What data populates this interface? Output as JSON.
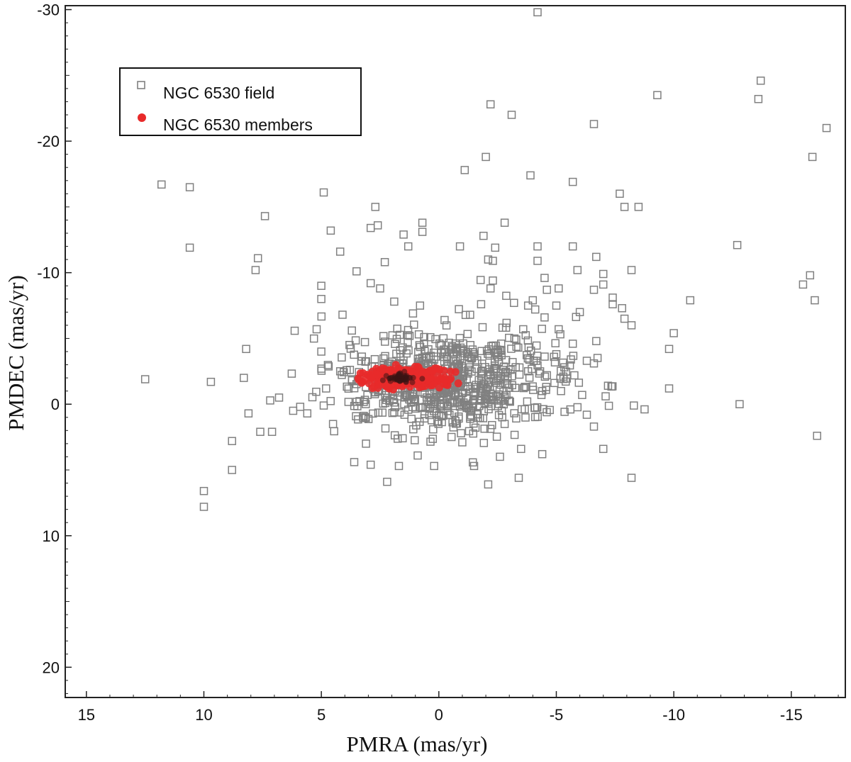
{
  "chart_data": {
    "type": "scatter",
    "xlabel": "PMRA (mas/yr)",
    "ylabel": "PMDEC (mas/yr)",
    "x_axis": {
      "min": -17.3,
      "max": 15.9,
      "reversed": true,
      "ticks": [
        15,
        10,
        5,
        0,
        -5,
        -10,
        -15
      ]
    },
    "y_axis": {
      "min": -30.3,
      "max": 22.3,
      "reversed": true,
      "ticks": [
        -30,
        -20,
        -10,
        0,
        10,
        20
      ]
    },
    "grid": false,
    "legend": {
      "placement": "top-left",
      "entries": [
        "NGC 6530 field",
        "NGC 6530 members"
      ]
    },
    "colors": {
      "field": "#808080",
      "members": "#e82a2a",
      "members_core": "#3a1414"
    },
    "series": [
      {
        "name": "NGC 6530 field",
        "marker": "open-square",
        "dense_core": {
          "center": [
            -0.4,
            -1.8
          ],
          "spread": [
            2.4,
            1.9
          ],
          "count": 700
        },
        "points": [
          [
            -4.2,
            -29.8
          ],
          [
            -13.7,
            -24.6
          ],
          [
            -13.6,
            -23.2
          ],
          [
            -9.3,
            -23.5
          ],
          [
            -2.2,
            -22.8
          ],
          [
            -3.1,
            -22.0
          ],
          [
            -16.5,
            -21.0
          ],
          [
            -6.6,
            -21.3
          ],
          [
            -15.9,
            -18.8
          ],
          [
            -2.0,
            -18.8
          ],
          [
            -1.1,
            -17.8
          ],
          [
            -3.9,
            -17.4
          ],
          [
            -5.7,
            -16.9
          ],
          [
            11.8,
            -16.7
          ],
          [
            10.6,
            -16.5
          ],
          [
            4.9,
            -16.1
          ],
          [
            -7.7,
            -16.0
          ],
          [
            -7.9,
            -15.0
          ],
          [
            -8.5,
            -15.0
          ],
          [
            2.7,
            -15.0
          ],
          [
            7.4,
            -14.3
          ],
          [
            0.7,
            -13.8
          ],
          [
            -2.8,
            -13.8
          ],
          [
            2.6,
            -13.6
          ],
          [
            2.9,
            -13.4
          ],
          [
            4.6,
            -13.2
          ],
          [
            0.7,
            -13.1
          ],
          [
            1.5,
            -12.9
          ],
          [
            -1.9,
            -12.8
          ],
          [
            -12.7,
            -12.1
          ],
          [
            10.6,
            -11.9
          ],
          [
            1.3,
            -12.0
          ],
          [
            -0.9,
            -12.0
          ],
          [
            -2.4,
            -11.9
          ],
          [
            -4.2,
            -12.0
          ],
          [
            -5.7,
            -12.0
          ],
          [
            4.2,
            -11.6
          ],
          [
            -6.7,
            -11.2
          ],
          [
            -2.1,
            -11.0
          ],
          [
            -2.3,
            -10.9
          ],
          [
            -4.2,
            -10.9
          ],
          [
            2.3,
            -10.8
          ],
          [
            7.7,
            -11.1
          ],
          [
            7.8,
            -10.2
          ],
          [
            3.5,
            -10.1
          ],
          [
            -5.9,
            -10.2
          ],
          [
            -7.0,
            -9.9
          ],
          [
            -8.2,
            -10.2
          ],
          [
            -4.5,
            -9.6
          ],
          [
            -2.3,
            -9.4
          ],
          [
            -15.8,
            -9.8
          ],
          [
            -15.5,
            -9.1
          ],
          [
            5.0,
            -9.0
          ],
          [
            2.9,
            -9.2
          ],
          [
            2.5,
            -8.8
          ],
          [
            -2.2,
            -8.8
          ],
          [
            -4.6,
            -8.7
          ],
          [
            -5.1,
            -8.8
          ],
          [
            -6.6,
            -8.7
          ],
          [
            -7.0,
            -9.1
          ],
          [
            -7.4,
            -8.1
          ],
          [
            -10.7,
            -7.9
          ],
          [
            -16.0,
            -7.9
          ],
          [
            5.0,
            -8.0
          ],
          [
            1.9,
            -7.8
          ],
          [
            0.8,
            -7.5
          ],
          [
            -1.8,
            -7.6
          ],
          [
            -3.2,
            -7.7
          ],
          [
            -3.8,
            -7.5
          ],
          [
            -4.0,
            -7.9
          ],
          [
            -5.0,
            -7.5
          ],
          [
            -6.0,
            -7.0
          ],
          [
            -7.4,
            -7.6
          ],
          [
            -7.8,
            -7.3
          ],
          [
            4.1,
            -6.8
          ],
          [
            1.1,
            -6.9
          ],
          [
            -4.1,
            -7.2
          ],
          [
            -4.5,
            -6.6
          ],
          [
            -7.9,
            -6.5
          ],
          [
            -8.2,
            -6.0
          ],
          [
            5.2,
            -5.7
          ],
          [
            3.7,
            -5.6
          ],
          [
            -5.1,
            -5.7
          ],
          [
            -10.0,
            -5.4
          ],
          [
            -5.7,
            -4.6
          ],
          [
            -6.7,
            -4.8
          ],
          [
            -9.8,
            -4.2
          ],
          [
            8.2,
            -4.2
          ],
          [
            5.0,
            -4.0
          ],
          [
            3.8,
            -4.5
          ],
          [
            -5.0,
            -3.8
          ],
          [
            -4.9,
            -3.6
          ],
          [
            -6.3,
            -3.3
          ],
          [
            5.0,
            -2.7
          ],
          [
            4.2,
            -2.5
          ],
          [
            -5.3,
            -2.1
          ],
          [
            -6.6,
            -3.1
          ],
          [
            -3.8,
            -2.5
          ],
          [
            -4.6,
            -2.2
          ],
          [
            -7.2,
            -1.4
          ],
          [
            12.5,
            -1.9
          ],
          [
            9.7,
            -1.7
          ],
          [
            8.3,
            -2.0
          ],
          [
            4.8,
            -1.2
          ],
          [
            -4.4,
            -1.0
          ],
          [
            -5.2,
            -1.0
          ],
          [
            -9.8,
            -1.2
          ],
          [
            6.8,
            -0.5
          ],
          [
            5.9,
            0.2
          ],
          [
            -5.6,
            0.4
          ],
          [
            -6.1,
            -0.7
          ],
          [
            -7.1,
            -0.6
          ],
          [
            4.9,
            0.1
          ],
          [
            7.6,
            2.1
          ],
          [
            8.1,
            0.7
          ],
          [
            6.2,
            0.5
          ],
          [
            7.1,
            2.1
          ],
          [
            5.6,
            0.7
          ],
          [
            -6.3,
            0.8
          ],
          [
            -8.3,
            0.1
          ],
          [
            -12.8,
            0.0
          ],
          [
            -6.6,
            1.7
          ],
          [
            8.8,
            2.8
          ],
          [
            -7.0,
            3.4
          ],
          [
            -16.1,
            2.4
          ],
          [
            8.8,
            5.0
          ],
          [
            10.0,
            6.6
          ],
          [
            10.0,
            7.8
          ],
          [
            3.6,
            4.4
          ],
          [
            2.2,
            5.9
          ],
          [
            1.7,
            4.7
          ],
          [
            -2.1,
            6.1
          ],
          [
            -3.4,
            5.6
          ],
          [
            -4.4,
            3.8
          ],
          [
            -8.2,
            5.6
          ],
          [
            -1.5,
            4.7
          ],
          [
            0.2,
            4.7
          ],
          [
            -2.6,
            4.0
          ],
          [
            3.1,
            3.0
          ],
          [
            2.9,
            4.6
          ],
          [
            -1.0,
            2.9
          ],
          [
            0.9,
            3.9
          ],
          [
            -3.5,
            3.4
          ],
          [
            -2.8,
            1.5
          ]
        ]
      },
      {
        "name": "NGC 6530 members",
        "marker": "filled-circle",
        "cluster": {
          "center": [
            1.4,
            -2.0
          ],
          "spread": [
            0.85,
            0.38
          ],
          "count": 260
        }
      }
    ]
  }
}
